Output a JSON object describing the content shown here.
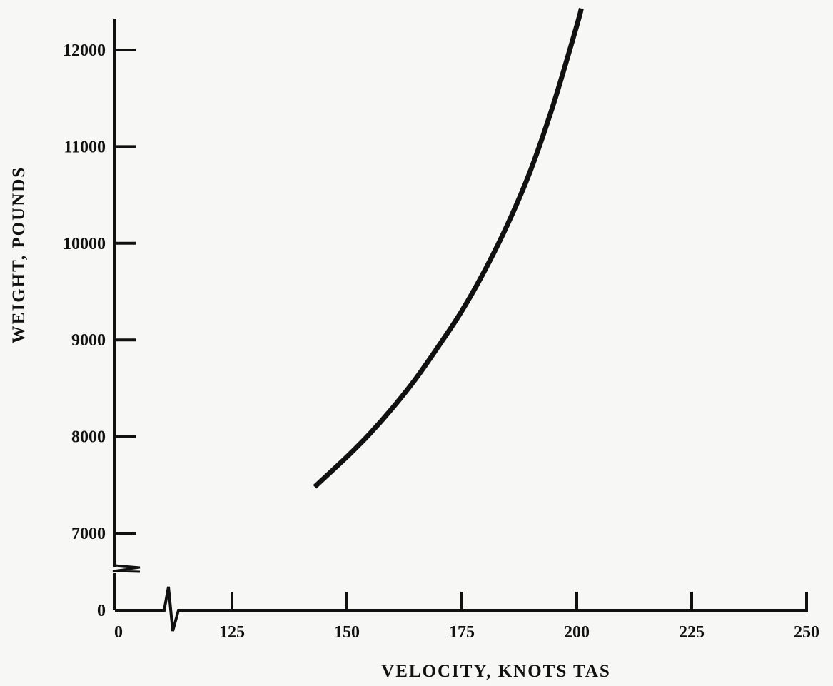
{
  "chart_data": {
    "type": "line",
    "title": "",
    "xlabel": "VELOCITY, KNOTS TAS",
    "ylabel": "WEIGHT, POUNDS",
    "xlim": [
      100,
      250
    ],
    "ylim": [
      6500,
      12500
    ],
    "x_ticks": [
      {
        "value": 0,
        "label": "0",
        "on_axis_break": true
      },
      {
        "value": 125,
        "label": "125"
      },
      {
        "value": 150,
        "label": "150"
      },
      {
        "value": 175,
        "label": "175"
      },
      {
        "value": 200,
        "label": "200"
      },
      {
        "value": 225,
        "label": "225"
      },
      {
        "value": 250,
        "label": "250"
      }
    ],
    "y_ticks": [
      {
        "value": 0,
        "label": "0",
        "on_axis_break": true
      },
      {
        "value": 7000,
        "label": "7000"
      },
      {
        "value": 8000,
        "label": "8000"
      },
      {
        "value": 9000,
        "label": "9000"
      },
      {
        "value": 10000,
        "label": "10000"
      },
      {
        "value": 11000,
        "label": "11000"
      },
      {
        "value": 12000,
        "label": "12000"
      }
    ],
    "axis_breaks": {
      "x": true,
      "y": true
    },
    "grid": false,
    "legend": "none",
    "series": [
      {
        "x": [
          143,
          150,
          155,
          160,
          165,
          170,
          175,
          180,
          185,
          190,
          195,
          200,
          201
        ],
        "y": [
          7480,
          7790,
          8030,
          8300,
          8600,
          8940,
          9300,
          9720,
          10200,
          10760,
          11450,
          12250,
          12430
        ]
      }
    ]
  }
}
